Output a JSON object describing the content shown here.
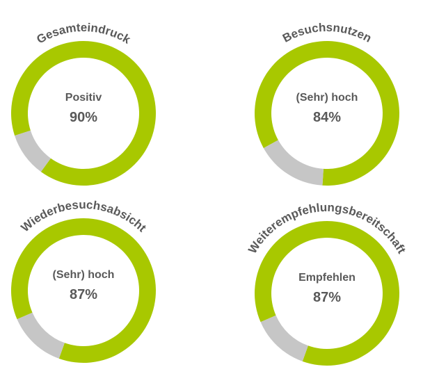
{
  "chart_data": [
    {
      "type": "donut",
      "title": "Gesamteindruck",
      "categories": [
        "Positiv",
        null
      ],
      "values": [
        90,
        10
      ],
      "value_labels": [
        "90%",
        null
      ],
      "colors": [
        "#a8c800",
        "#c6c6c6"
      ]
    },
    {
      "type": "donut",
      "title": "Besuchsnutzen",
      "categories": [
        "(Sehr) hoch",
        null
      ],
      "values": [
        84,
        16
      ],
      "value_labels": [
        "84%",
        null
      ],
      "colors": [
        "#a8c800",
        "#c6c6c6"
      ]
    },
    {
      "type": "donut",
      "title": "Wiederbesuchsabsicht",
      "categories": [
        "(Sehr) hoch",
        null
      ],
      "values": [
        87,
        13
      ],
      "value_labels": [
        "87%",
        null
      ],
      "colors": [
        "#a8c800",
        "#c6c6c6"
      ]
    },
    {
      "type": "donut",
      "title": "Weiterempfehlungsbereitschaft",
      "categories": [
        "Empfehlen",
        null
      ],
      "values": [
        87,
        13
      ],
      "value_labels": [
        "87%",
        null
      ],
      "colors": [
        "#a8c800",
        "#c6c6c6"
      ]
    }
  ]
}
